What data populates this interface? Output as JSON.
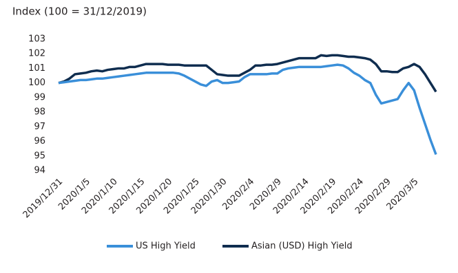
{
  "chart_data": {
    "type": "line",
    "title": "Index (100 = 31/12/2019)",
    "categories": [
      "2019/12/31",
      null,
      null,
      null,
      null,
      "2020/1/5",
      null,
      null,
      null,
      null,
      "2020/1/10",
      null,
      null,
      null,
      null,
      "2020/1/15",
      null,
      null,
      null,
      null,
      "2020/1/20",
      null,
      null,
      null,
      null,
      "2020/1/25",
      null,
      null,
      null,
      null,
      "2020/1/30",
      null,
      null,
      null,
      null,
      "2020/2/4",
      null,
      null,
      null,
      null,
      "2020/2/9",
      null,
      null,
      null,
      null,
      "2020/2/14",
      null,
      null,
      null,
      null,
      "2020/2/19",
      null,
      null,
      null,
      null,
      "2020/2/24",
      null,
      null,
      null,
      null,
      "2020/2/29",
      null,
      null,
      null,
      null,
      "2020/3/5",
      null,
      null,
      null,
      null
    ],
    "series": [
      {
        "name": "US High Yield",
        "color": "#3a8fd9",
        "values": [
          100.0,
          100.05,
          100.1,
          100.15,
          100.2,
          100.2,
          100.25,
          100.3,
          100.3,
          100.35,
          100.4,
          100.45,
          100.5,
          100.55,
          100.6,
          100.65,
          100.7,
          100.7,
          100.7,
          100.7,
          100.7,
          100.7,
          100.65,
          100.5,
          100.3,
          100.1,
          99.9,
          99.8,
          100.1,
          100.2,
          100.0,
          100.0,
          100.05,
          100.1,
          100.4,
          100.6,
          100.6,
          100.6,
          100.6,
          100.65,
          100.65,
          100.9,
          101.0,
          101.05,
          101.1,
          101.1,
          101.1,
          101.1,
          101.1,
          101.15,
          101.2,
          101.25,
          101.2,
          101.0,
          100.7,
          100.5,
          100.2,
          100.0,
          99.2,
          98.6,
          98.7,
          98.8,
          98.9,
          99.5,
          100.0,
          99.5,
          98.3,
          97.2,
          96.1,
          95.1
        ]
      },
      {
        "name": "Asian (USD) High Yield",
        "color": "#0f2d4f",
        "values": [
          100.0,
          100.1,
          100.3,
          100.6,
          100.65,
          100.7,
          100.8,
          100.85,
          100.8,
          100.9,
          100.95,
          101.0,
          101.0,
          101.1,
          101.1,
          101.2,
          101.3,
          101.3,
          101.3,
          101.3,
          101.25,
          101.25,
          101.25,
          101.2,
          101.2,
          101.2,
          101.2,
          101.2,
          100.9,
          100.6,
          100.55,
          100.5,
          100.5,
          100.5,
          100.7,
          100.9,
          101.2,
          101.2,
          101.25,
          101.25,
          101.3,
          101.4,
          101.5,
          101.6,
          101.7,
          101.7,
          101.7,
          101.7,
          101.9,
          101.85,
          101.9,
          101.9,
          101.85,
          101.8,
          101.8,
          101.75,
          101.7,
          101.6,
          101.3,
          100.8,
          100.8,
          100.75,
          100.75,
          101.0,
          101.1,
          101.3,
          101.1,
          100.6,
          100.0,
          99.4
        ]
      }
    ],
    "ylim": [
      94,
      103
    ],
    "yticks": [
      94,
      95,
      96,
      97,
      98,
      99,
      100,
      101,
      102,
      103
    ],
    "grid": false
  }
}
